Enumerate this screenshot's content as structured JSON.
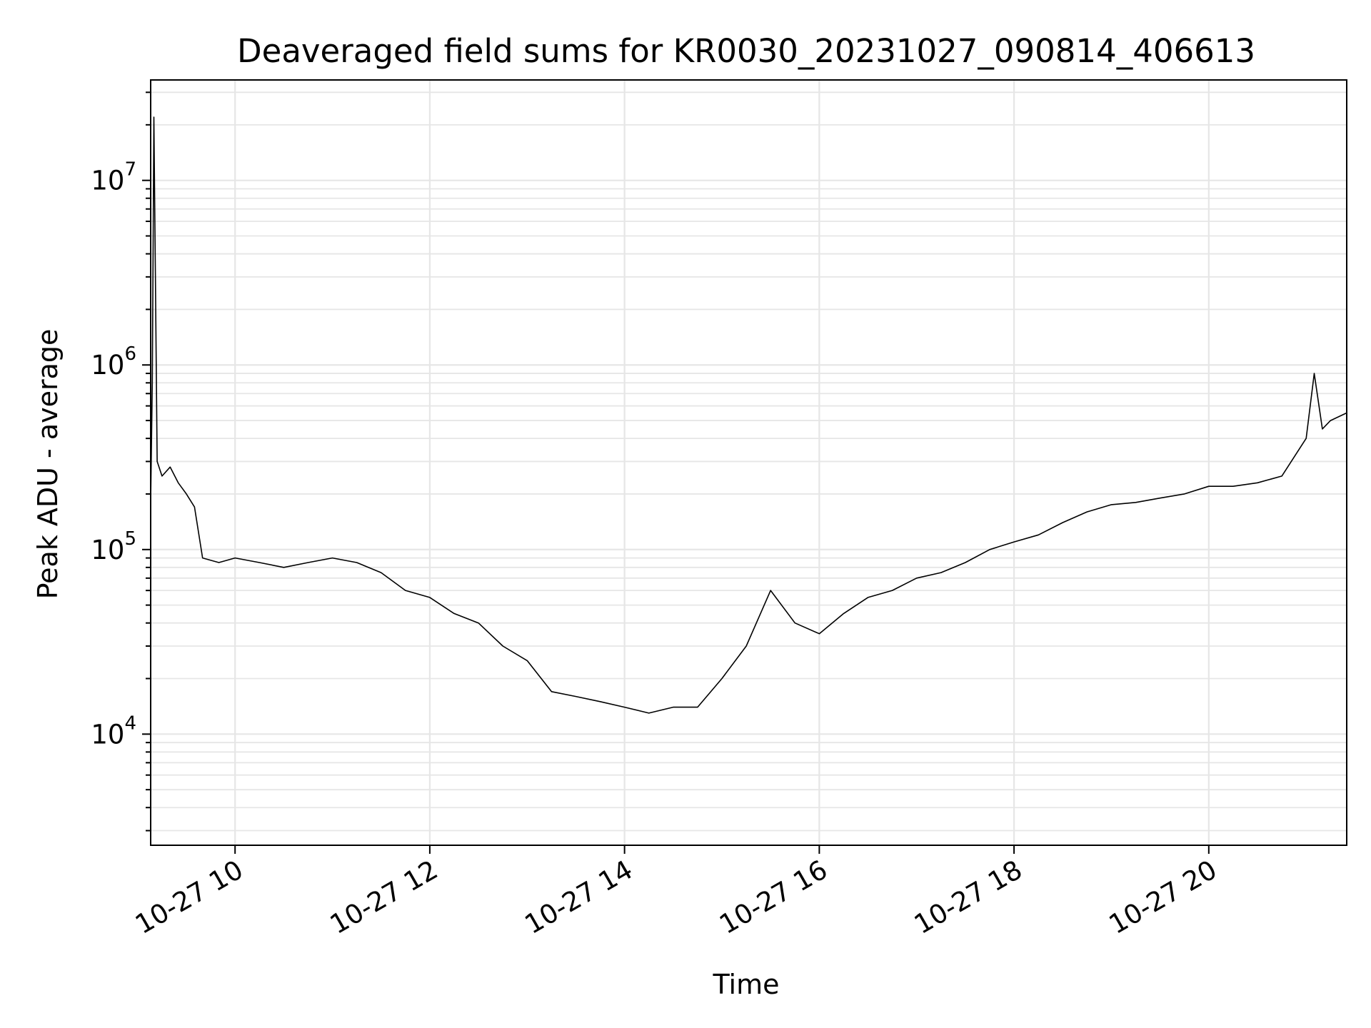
{
  "chart_data": {
    "type": "line",
    "title": "Deaveraged field sums for KR0030_20231027_090814_406613",
    "xlabel": "Time",
    "ylabel": "Peak ADU - average",
    "yscale": "log",
    "xlim": [
      "2023-10-27 09:08",
      "2023-10-27 21:25"
    ],
    "ylim": [
      2500,
      35000000
    ],
    "grid": true,
    "line_color": "#000000",
    "grid_color": "#e6e6e6",
    "x_ticks": [
      {
        "label": "10-27 10",
        "value": "2023-10-27 10:00"
      },
      {
        "label": "10-27 12",
        "value": "2023-10-27 12:00"
      },
      {
        "label": "10-27 14",
        "value": "2023-10-27 14:00"
      },
      {
        "label": "10-27 16",
        "value": "2023-10-27 16:00"
      },
      {
        "label": "10-27 18",
        "value": "2023-10-27 18:00"
      },
      {
        "label": "10-27 20",
        "value": "2023-10-27 20:00"
      }
    ],
    "y_ticks": [
      {
        "base": "10",
        "exp": "4",
        "value": 10000
      },
      {
        "base": "10",
        "exp": "5",
        "value": 100000
      },
      {
        "base": "10",
        "exp": "6",
        "value": 1000000
      },
      {
        "base": "10",
        "exp": "7",
        "value": 10000000
      }
    ],
    "series": [
      {
        "points": [
          [
            "2023-10-27 09:08",
            180000
          ],
          [
            "2023-10-27 09:09",
            800000
          ],
          [
            "2023-10-27 09:10",
            22000000
          ],
          [
            "2023-10-27 09:12",
            300000
          ],
          [
            "2023-10-27 09:15",
            250000
          ],
          [
            "2023-10-27 09:20",
            280000
          ],
          [
            "2023-10-27 09:25",
            230000
          ],
          [
            "2023-10-27 09:30",
            200000
          ],
          [
            "2023-10-27 09:35",
            170000
          ],
          [
            "2023-10-27 09:40",
            90000
          ],
          [
            "2023-10-27 09:50",
            85000
          ],
          [
            "2023-10-27 10:00",
            90000
          ],
          [
            "2023-10-27 10:15",
            85000
          ],
          [
            "2023-10-27 10:30",
            80000
          ],
          [
            "2023-10-27 10:45",
            85000
          ],
          [
            "2023-10-27 11:00",
            90000
          ],
          [
            "2023-10-27 11:15",
            85000
          ],
          [
            "2023-10-27 11:30",
            75000
          ],
          [
            "2023-10-27 11:45",
            60000
          ],
          [
            "2023-10-27 12:00",
            55000
          ],
          [
            "2023-10-27 12:15",
            45000
          ],
          [
            "2023-10-27 12:30",
            40000
          ],
          [
            "2023-10-27 12:45",
            30000
          ],
          [
            "2023-10-27 13:00",
            25000
          ],
          [
            "2023-10-27 13:15",
            17000
          ],
          [
            "2023-10-27 13:30",
            16000
          ],
          [
            "2023-10-27 13:45",
            15000
          ],
          [
            "2023-10-27 14:00",
            14000
          ],
          [
            "2023-10-27 14:15",
            13000
          ],
          [
            "2023-10-27 14:30",
            14000
          ],
          [
            "2023-10-27 14:45",
            14000
          ],
          [
            "2023-10-27 15:00",
            20000
          ],
          [
            "2023-10-27 15:15",
            30000
          ],
          [
            "2023-10-27 15:30",
            60000
          ],
          [
            "2023-10-27 15:45",
            40000
          ],
          [
            "2023-10-27 16:00",
            35000
          ],
          [
            "2023-10-27 16:15",
            45000
          ],
          [
            "2023-10-27 16:30",
            55000
          ],
          [
            "2023-10-27 16:45",
            60000
          ],
          [
            "2023-10-27 17:00",
            70000
          ],
          [
            "2023-10-27 17:15",
            75000
          ],
          [
            "2023-10-27 17:30",
            85000
          ],
          [
            "2023-10-27 17:45",
            100000
          ],
          [
            "2023-10-27 18:00",
            110000
          ],
          [
            "2023-10-27 18:15",
            120000
          ],
          [
            "2023-10-27 18:30",
            140000
          ],
          [
            "2023-10-27 18:45",
            160000
          ],
          [
            "2023-10-27 19:00",
            175000
          ],
          [
            "2023-10-27 19:15",
            180000
          ],
          [
            "2023-10-27 19:30",
            190000
          ],
          [
            "2023-10-27 19:45",
            200000
          ],
          [
            "2023-10-27 20:00",
            220000
          ],
          [
            "2023-10-27 20:15",
            220000
          ],
          [
            "2023-10-27 20:30",
            230000
          ],
          [
            "2023-10-27 20:45",
            250000
          ],
          [
            "2023-10-27 21:00",
            400000
          ],
          [
            "2023-10-27 21:05",
            900000
          ],
          [
            "2023-10-27 21:10",
            450000
          ],
          [
            "2023-10-27 21:15",
            500000
          ],
          [
            "2023-10-27 21:25",
            550000
          ]
        ]
      }
    ]
  }
}
